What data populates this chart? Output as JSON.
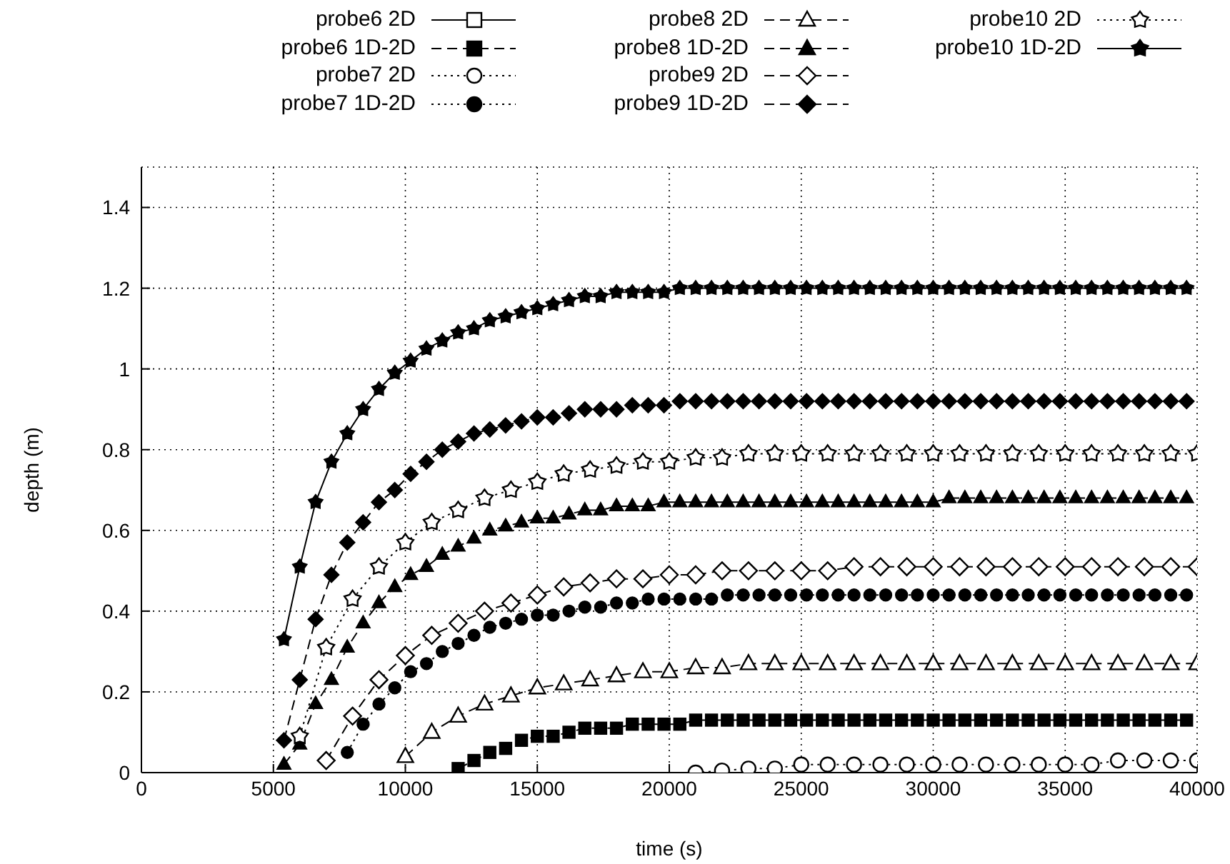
{
  "chart_data": {
    "type": "line",
    "xlabel": "time (s)",
    "ylabel": "depth (m)",
    "xlim": [
      0,
      40000
    ],
    "xticks": [
      0,
      5000,
      10000,
      15000,
      20000,
      25000,
      30000,
      35000,
      40000
    ],
    "ylim": [
      0,
      1.5
    ],
    "yticks": [
      0,
      0.2,
      0.4,
      0.6,
      0.8,
      1,
      1.2,
      1.4
    ],
    "grid": true,
    "legend": "top",
    "series": [
      {
        "name": "probe6 2D",
        "color": "#000000",
        "marker": "square",
        "line_style": "solid"
      },
      {
        "name": "probe6 1D-2D",
        "color": "#000000",
        "marker": "square",
        "line_style": "dashed",
        "x": [
          12000,
          12600,
          13200,
          13800,
          14400,
          15000,
          15600,
          16200,
          16800,
          17400,
          18000,
          18600,
          19200,
          19800,
          20400,
          21000,
          21600,
          22200,
          22800,
          23400,
          24000,
          24600,
          25200,
          25800,
          26400,
          27000,
          27600,
          28200,
          28800,
          29400,
          30000,
          30600,
          31200,
          31800,
          32400,
          33000,
          33600,
          34200,
          34800,
          35400,
          36000,
          36600,
          37200,
          37800,
          38400,
          39000,
          39600
        ],
        "values": [
          0.01,
          0.03,
          0.05,
          0.06,
          0.08,
          0.09,
          0.09,
          0.1,
          0.11,
          0.11,
          0.11,
          0.12,
          0.12,
          0.12,
          0.12,
          0.13,
          0.13,
          0.13,
          0.13,
          0.13,
          0.13,
          0.13,
          0.13,
          0.13,
          0.13,
          0.13,
          0.13,
          0.13,
          0.13,
          0.13,
          0.13,
          0.13,
          0.13,
          0.13,
          0.13,
          0.13,
          0.13,
          0.13,
          0.13,
          0.13,
          0.13,
          0.13,
          0.13,
          0.13,
          0.13,
          0.13,
          0.13
        ]
      },
      {
        "name": "probe7 2D",
        "color": "#000000",
        "marker": "circle",
        "line_style": "dotted",
        "x": [
          21000,
          22000,
          23000,
          24000,
          25000,
          26000,
          27000,
          28000,
          29000,
          30000,
          31000,
          32000,
          33000,
          34000,
          35000,
          36000,
          37000,
          38000,
          39000,
          40000
        ],
        "values": [
          0,
          0.005,
          0.01,
          0.01,
          0.02,
          0.02,
          0.02,
          0.02,
          0.02,
          0.02,
          0.02,
          0.02,
          0.02,
          0.02,
          0.02,
          0.02,
          0.03,
          0.03,
          0.03,
          0.03
        ]
      },
      {
        "name": "probe7 1D-2D",
        "color": "#000000",
        "marker": "circle",
        "line_style": "dotted",
        "x": [
          7800,
          8400,
          9000,
          9600,
          10200,
          10800,
          11400,
          12000,
          12600,
          13200,
          13800,
          14400,
          15000,
          15600,
          16200,
          16800,
          17400,
          18000,
          18600,
          19200,
          19800,
          20400,
          21000,
          21600,
          22200,
          22800,
          23400,
          24000,
          24600,
          25200,
          25800,
          26400,
          27000,
          27600,
          28200,
          28800,
          29400,
          30000,
          30600,
          31200,
          31800,
          32400,
          33000,
          33600,
          34200,
          34800,
          35400,
          36000,
          36600,
          37200,
          37800,
          38400,
          39000,
          39600
        ],
        "values": [
          0.05,
          0.12,
          0.17,
          0.21,
          0.25,
          0.27,
          0.3,
          0.32,
          0.34,
          0.36,
          0.37,
          0.38,
          0.39,
          0.39,
          0.4,
          0.41,
          0.41,
          0.42,
          0.42,
          0.43,
          0.43,
          0.43,
          0.43,
          0.43,
          0.44,
          0.44,
          0.44,
          0.44,
          0.44,
          0.44,
          0.44,
          0.44,
          0.44,
          0.44,
          0.44,
          0.44,
          0.44,
          0.44,
          0.44,
          0.44,
          0.44,
          0.44,
          0.44,
          0.44,
          0.44,
          0.44,
          0.44,
          0.44,
          0.44,
          0.44,
          0.44,
          0.44,
          0.44,
          0.44
        ]
      },
      {
        "name": "probe8 2D",
        "color": "#000000",
        "marker": "triangle",
        "line_style": "dashed",
        "x": [
          10000,
          11000,
          12000,
          13000,
          14000,
          15000,
          16000,
          17000,
          18000,
          19000,
          20000,
          21000,
          22000,
          23000,
          24000,
          25000,
          26000,
          27000,
          28000,
          29000,
          30000,
          31000,
          32000,
          33000,
          34000,
          35000,
          36000,
          37000,
          38000,
          39000,
          40000
        ],
        "values": [
          0.04,
          0.1,
          0.14,
          0.17,
          0.19,
          0.21,
          0.22,
          0.23,
          0.24,
          0.25,
          0.25,
          0.26,
          0.26,
          0.27,
          0.27,
          0.27,
          0.27,
          0.27,
          0.27,
          0.27,
          0.27,
          0.27,
          0.27,
          0.27,
          0.27,
          0.27,
          0.27,
          0.27,
          0.27,
          0.27,
          0.27
        ]
      },
      {
        "name": "probe8 1D-2D",
        "color": "#000000",
        "marker": "triangle",
        "line_style": "dashed",
        "x": [
          5400,
          6000,
          6600,
          7200,
          7800,
          8400,
          9000,
          9600,
          10200,
          10800,
          11400,
          12000,
          12600,
          13200,
          13800,
          14400,
          15000,
          15600,
          16200,
          16800,
          17400,
          18000,
          18600,
          19200,
          19800,
          20400,
          21000,
          21600,
          22200,
          22800,
          23400,
          24000,
          24600,
          25200,
          25800,
          26400,
          27000,
          27600,
          28200,
          28800,
          29400,
          30000,
          30600,
          31200,
          31800,
          32400,
          33000,
          33600,
          34200,
          34800,
          35400,
          36000,
          36600,
          37200,
          37800,
          38400,
          39000,
          39600
        ],
        "values": [
          0.02,
          0.07,
          0.17,
          0.23,
          0.31,
          0.37,
          0.42,
          0.46,
          0.49,
          0.51,
          0.54,
          0.56,
          0.58,
          0.6,
          0.61,
          0.62,
          0.63,
          0.63,
          0.64,
          0.65,
          0.65,
          0.66,
          0.66,
          0.66,
          0.67,
          0.67,
          0.67,
          0.67,
          0.67,
          0.67,
          0.67,
          0.67,
          0.67,
          0.67,
          0.67,
          0.67,
          0.67,
          0.67,
          0.67,
          0.67,
          0.67,
          0.67,
          0.68,
          0.68,
          0.68,
          0.68,
          0.68,
          0.68,
          0.68,
          0.68,
          0.68,
          0.68,
          0.68,
          0.68,
          0.68,
          0.68,
          0.68,
          0.68
        ]
      },
      {
        "name": "probe9 2D",
        "color": "#000000",
        "marker": "diamond",
        "line_style": "dashed",
        "x": [
          7000,
          8000,
          9000,
          10000,
          11000,
          12000,
          13000,
          14000,
          15000,
          16000,
          17000,
          18000,
          19000,
          20000,
          21000,
          22000,
          23000,
          24000,
          25000,
          26000,
          27000,
          28000,
          29000,
          30000,
          31000,
          32000,
          33000,
          34000,
          35000,
          36000,
          37000,
          38000,
          39000,
          40000
        ],
        "values": [
          0.03,
          0.14,
          0.23,
          0.29,
          0.34,
          0.37,
          0.4,
          0.42,
          0.44,
          0.46,
          0.47,
          0.48,
          0.48,
          0.49,
          0.49,
          0.5,
          0.5,
          0.5,
          0.5,
          0.5,
          0.51,
          0.51,
          0.51,
          0.51,
          0.51,
          0.51,
          0.51,
          0.51,
          0.51,
          0.51,
          0.51,
          0.51,
          0.51,
          0.51
        ]
      },
      {
        "name": "probe9 1D-2D",
        "color": "#000000",
        "marker": "diamond",
        "line_style": "dashed",
        "x": [
          5400,
          6000,
          6600,
          7200,
          7800,
          8400,
          9000,
          9600,
          10200,
          10800,
          11400,
          12000,
          12600,
          13200,
          13800,
          14400,
          15000,
          15600,
          16200,
          16800,
          17400,
          18000,
          18600,
          19200,
          19800,
          20400,
          21000,
          21600,
          22200,
          22800,
          23400,
          24000,
          24600,
          25200,
          25800,
          26400,
          27000,
          27600,
          28200,
          28800,
          29400,
          30000,
          30600,
          31200,
          31800,
          32400,
          33000,
          33600,
          34200,
          34800,
          35400,
          36000,
          36600,
          37200,
          37800,
          38400,
          39000,
          39600
        ],
        "values": [
          0.08,
          0.23,
          0.38,
          0.49,
          0.57,
          0.62,
          0.67,
          0.7,
          0.74,
          0.77,
          0.8,
          0.82,
          0.84,
          0.85,
          0.86,
          0.87,
          0.88,
          0.88,
          0.89,
          0.9,
          0.9,
          0.9,
          0.91,
          0.91,
          0.91,
          0.92,
          0.92,
          0.92,
          0.92,
          0.92,
          0.92,
          0.92,
          0.92,
          0.92,
          0.92,
          0.92,
          0.92,
          0.92,
          0.92,
          0.92,
          0.92,
          0.92,
          0.92,
          0.92,
          0.92,
          0.92,
          0.92,
          0.92,
          0.92,
          0.92,
          0.92,
          0.92,
          0.92,
          0.92,
          0.92,
          0.92,
          0.92,
          0.92
        ]
      },
      {
        "name": "probe10 2D",
        "color": "#000000",
        "line_style": "dotted",
        "x": [
          6000,
          7000,
          8000,
          9000,
          10000,
          11000,
          12000,
          13000,
          14000,
          15000,
          16000,
          17000,
          18000,
          19000,
          20000,
          21000,
          22000,
          23000,
          24000,
          25000,
          26000,
          27000,
          28000,
          29000,
          30000,
          31000,
          32000,
          33000,
          34000,
          35000,
          36000,
          37000,
          38000,
          39000,
          40000
        ],
        "marker": "star",
        "values": [
          0.09,
          0.31,
          0.43,
          0.51,
          0.57,
          0.62,
          0.65,
          0.68,
          0.7,
          0.72,
          0.74,
          0.75,
          0.76,
          0.77,
          0.77,
          0.78,
          0.78,
          0.79,
          0.79,
          0.79,
          0.79,
          0.79,
          0.79,
          0.79,
          0.79,
          0.79,
          0.79,
          0.79,
          0.79,
          0.79,
          0.79,
          0.79,
          0.79,
          0.79,
          0.79
        ]
      },
      {
        "name": "probe10 1D-2D",
        "color": "#000000",
        "line_style": "solid",
        "x": [
          5400,
          6000,
          6600,
          7200,
          7800,
          8400,
          9000,
          9600,
          10200,
          10800,
          11400,
          12000,
          12600,
          13200,
          13800,
          14400,
          15000,
          15600,
          16200,
          16800,
          17400,
          18000,
          18600,
          19200,
          19800,
          20400,
          21000,
          21600,
          22200,
          22800,
          23400,
          24000,
          24600,
          25200,
          25800,
          26400,
          27000,
          27600,
          28200,
          28800,
          29400,
          30000,
          30600,
          31200,
          31800,
          32400,
          33000,
          33600,
          34200,
          34800,
          35400,
          36000,
          36600,
          37200,
          37800,
          38400,
          39000,
          39600
        ],
        "marker": "star",
        "values": [
          0.33,
          0.51,
          0.67,
          0.77,
          0.84,
          0.9,
          0.95,
          0.99,
          1.02,
          1.05,
          1.07,
          1.09,
          1.1,
          1.12,
          1.13,
          1.14,
          1.15,
          1.16,
          1.17,
          1.18,
          1.18,
          1.19,
          1.19,
          1.19,
          1.19,
          1.2,
          1.2,
          1.2,
          1.2,
          1.2,
          1.2,
          1.2,
          1.2,
          1.2,
          1.2,
          1.2,
          1.2,
          1.2,
          1.2,
          1.2,
          1.2,
          1.2,
          1.2,
          1.2,
          1.2,
          1.2,
          1.2,
          1.2,
          1.2,
          1.2,
          1.2,
          1.2,
          1.2,
          1.2,
          1.2,
          1.2,
          1.2,
          1.2
        ]
      }
    ]
  }
}
